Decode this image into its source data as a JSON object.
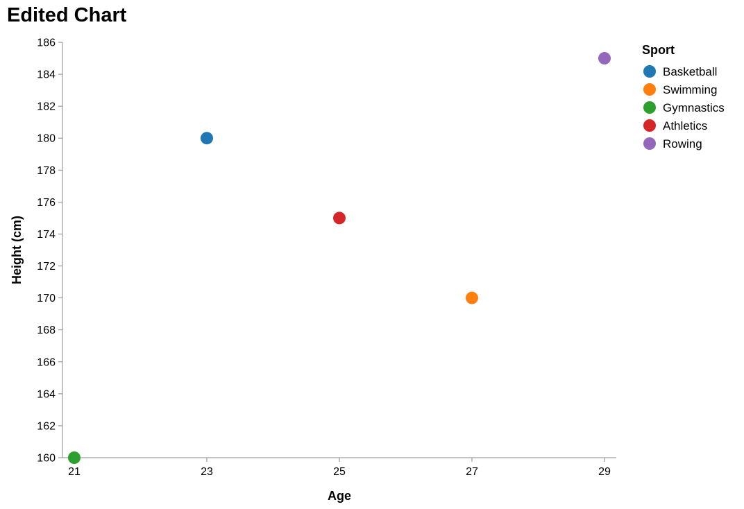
{
  "chart_data": {
    "type": "scatter",
    "title": "Edited Chart",
    "xlabel": "Age",
    "ylabel": "Height (cm)",
    "xlim": [
      21,
      29
    ],
    "ylim": [
      160,
      186
    ],
    "x_ticks": [
      21,
      23,
      25,
      27,
      29
    ],
    "y_ticks": [
      160,
      162,
      164,
      166,
      168,
      170,
      172,
      174,
      176,
      178,
      180,
      182,
      184,
      186
    ],
    "grid": false,
    "legend": {
      "title": "Sport",
      "placement": "right"
    },
    "series": [
      {
        "name": "Basketball",
        "color": "#1f77b4",
        "points": [
          {
            "x": 23,
            "y": 180
          }
        ]
      },
      {
        "name": "Swimming",
        "color": "#ff7f0e",
        "points": [
          {
            "x": 27,
            "y": 170
          }
        ]
      },
      {
        "name": "Gymnastics",
        "color": "#2ca02c",
        "points": [
          {
            "x": 21,
            "y": 160
          }
        ]
      },
      {
        "name": "Athletics",
        "color": "#d62728",
        "points": [
          {
            "x": 25,
            "y": 175
          }
        ]
      },
      {
        "name": "Rowing",
        "color": "#9467bd",
        "points": [
          {
            "x": 29,
            "y": 185
          }
        ]
      }
    ]
  }
}
